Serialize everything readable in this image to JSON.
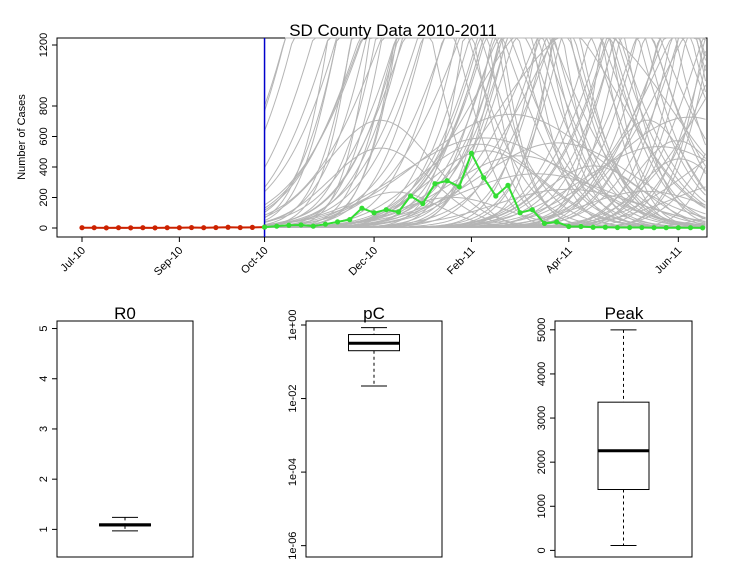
{
  "chart_data": [
    {
      "type": "line",
      "title": "SD County Data 2010-2011",
      "ylabel": "Number of Cases",
      "xlabel": "",
      "x_tick_labels": [
        "Jul-10",
        "Sep-10",
        "Oct-10",
        "Dec-10",
        "Feb-11",
        "Apr-11",
        "Jun-11"
      ],
      "y_ticks": [
        0,
        200,
        400,
        600,
        800,
        1200
      ],
      "ylim": [
        0,
        1250
      ],
      "vline_week": 15,
      "vline_color": "#0000cc",
      "series": [
        {
          "color": "#cc2200",
          "week_start": 0,
          "values": [
            2,
            2,
            1,
            2,
            1,
            2,
            1,
            2,
            2,
            3,
            2,
            3,
            5,
            3,
            4,
            6
          ]
        },
        {
          "color": "#33dd33",
          "week_start": 15,
          "values": [
            6,
            12,
            18,
            20,
            12,
            25,
            40,
            55,
            130,
            100,
            120,
            105,
            210,
            160,
            290,
            310,
            270,
            490,
            330,
            210,
            280,
            100,
            120,
            30,
            40,
            10,
            10,
            5,
            5,
            3,
            3,
            3,
            2,
            2,
            2,
            2,
            1
          ]
        }
      ],
      "simulation_color": "#b5b5b5"
    },
    {
      "type": "box",
      "title": "R0",
      "y_ticks": [
        1,
        2,
        3,
        4,
        5
      ],
      "ylim": [
        0.45,
        5.15
      ],
      "whisker_low": 0.97,
      "q1": 1.07,
      "median": 1.09,
      "q3": 1.11,
      "whisker_high": 1.24
    },
    {
      "type": "box",
      "title": "pC",
      "log_scale": true,
      "y_tick_labels": [
        "1e+00",
        "1e-02",
        "1e-04",
        "1e-06"
      ],
      "y_tick_exponents": [
        0,
        -2,
        -4,
        -6
      ],
      "ylim_log10": [
        -6.2,
        0.0
      ],
      "whisker_low": 0.022,
      "q1": 0.2,
      "median": 0.32,
      "q3": 0.55,
      "whisker_high": 0.85
    },
    {
      "type": "box",
      "title": "Peak",
      "y_ticks": [
        0,
        1000,
        2000,
        3000,
        4000,
        5000
      ],
      "ylim": [
        -150,
        5200
      ],
      "whisker_low": 110,
      "q1": 1380,
      "median": 2260,
      "q3": 3360,
      "whisker_high": 5000
    }
  ]
}
